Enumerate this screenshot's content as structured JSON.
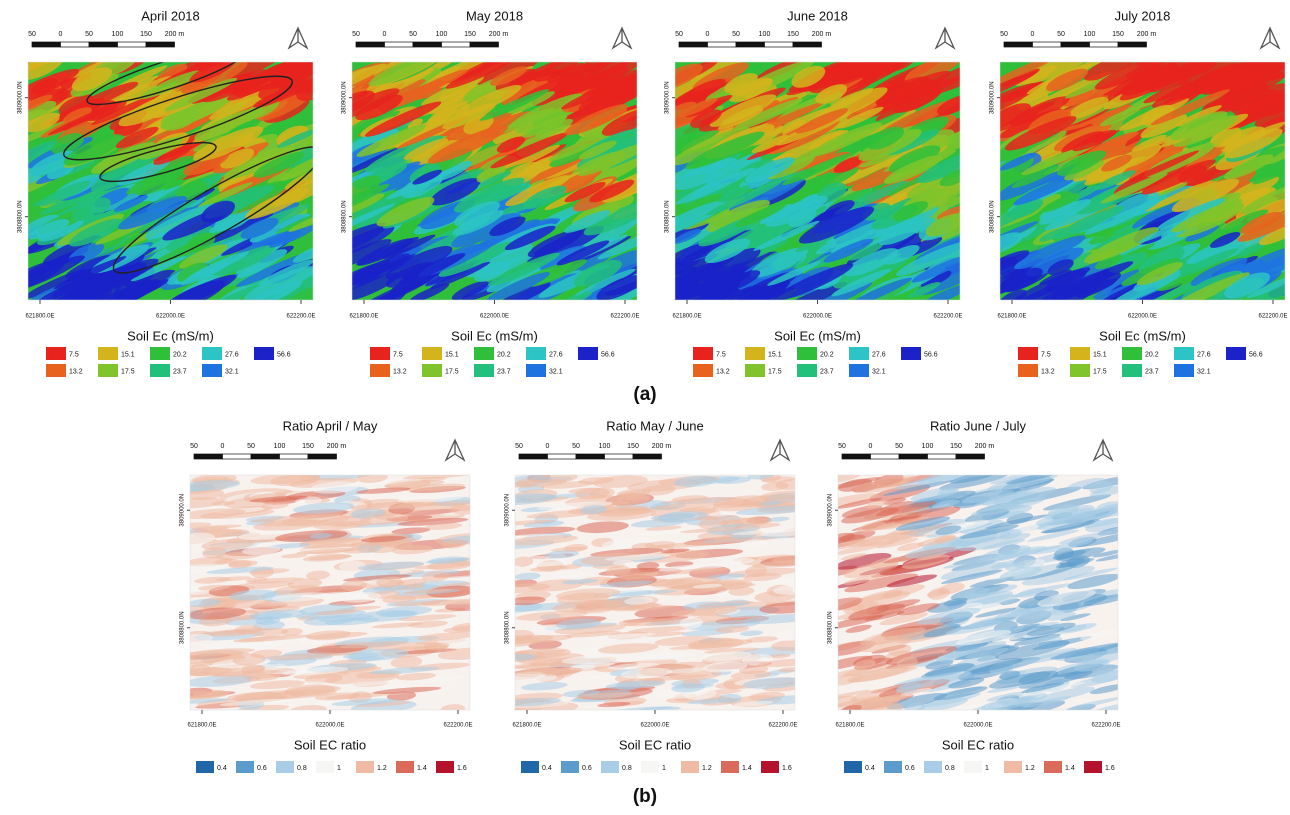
{
  "row_a": {
    "label": "(a)",
    "titles": [
      "April 2018",
      "May 2018",
      "June 2018",
      "July 2018"
    ],
    "scale": [
      "50",
      "0",
      "50",
      "100",
      "150",
      "200 m"
    ],
    "y_labels": [
      "3809000.0N",
      "3808800.0N"
    ],
    "x_labels": [
      "621800.0E",
      "622000.0E",
      "622200.0E"
    ],
    "legend_title": "Soil Ec (mS/m)",
    "legend": [
      {
        "label": "7.5",
        "color": "#e8231d"
      },
      {
        "label": "13.2",
        "color": "#e8621e"
      },
      {
        "label": "15.1",
        "color": "#d4b41c"
      },
      {
        "label": "17.5",
        "color": "#7fc42a"
      },
      {
        "label": "20.2",
        "color": "#2fbf3a"
      },
      {
        "label": "23.7",
        "color": "#22c07a"
      },
      {
        "label": "27.6",
        "color": "#2cc4c4"
      },
      {
        "label": "32.1",
        "color": "#1f73e0"
      },
      {
        "label": "56.6",
        "color": "#1a22c8"
      }
    ]
  },
  "row_b": {
    "label": "(b)",
    "titles": [
      "Ratio April / May",
      "Ratio May / June",
      "Ratio June / July"
    ],
    "scale": [
      "50",
      "0",
      "50",
      "100",
      "150",
      "200 m"
    ],
    "y_labels": [
      "3809000.0N",
      "3808800.0N"
    ],
    "x_labels": [
      "621800.0E",
      "622000.0E",
      "622200.0E"
    ],
    "legend_title": "Soil EC ratio",
    "legend": [
      {
        "label": "0.4",
        "color": "#2066a8"
      },
      {
        "label": "0.6",
        "color": "#5c9ccc"
      },
      {
        "label": "0.8",
        "color": "#a9cde6"
      },
      {
        "label": "1",
        "color": "#f6f6f4"
      },
      {
        "label": "1.2",
        "color": "#efbba4"
      },
      {
        "label": "1.4",
        "color": "#da6b5a"
      },
      {
        "label": "1.6",
        "color": "#b5132b"
      }
    ]
  }
}
